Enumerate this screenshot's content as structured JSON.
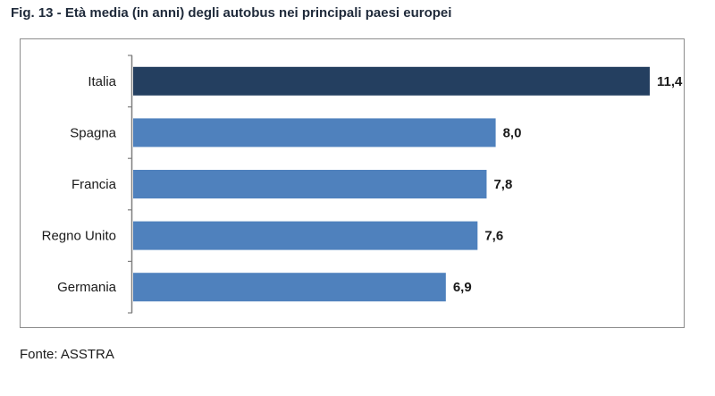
{
  "figure": {
    "title": "Fig. 13 -  Età media (in anni) degli autobus nei principali paesi europei",
    "source": "Fonte: ASSTRA"
  },
  "colors": {
    "highlight_bar": "#243f60",
    "default_bar": "#4f81bd",
    "axis": "#7f7f7f"
  },
  "chart_data": {
    "type": "bar",
    "orientation": "horizontal",
    "title": "Età media (in anni) degli autobus nei principali paesi europei",
    "categories": [
      "Italia",
      "Spagna",
      "Francia",
      "Regno Unito",
      "Germania"
    ],
    "values": [
      11.4,
      8.0,
      7.8,
      7.6,
      6.9
    ],
    "value_labels": [
      "11,4",
      "8,0",
      "7,8",
      "7,6",
      "6,9"
    ],
    "highlighted": "Italia",
    "xlim": [
      0,
      12
    ],
    "grid": false,
    "legend": "none",
    "xlabel": "",
    "ylabel": ""
  }
}
